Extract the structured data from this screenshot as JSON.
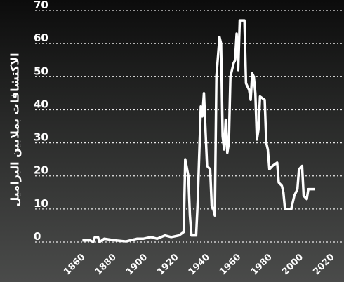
{
  "chart_data": {
    "type": "line",
    "y_label": "الاكتشافات بملايين البراميل",
    "x": [
      1859,
      1864,
      1866,
      1867,
      1869,
      1870,
      1873,
      1880,
      1887,
      1894,
      1898,
      1903,
      1907,
      1912,
      1916,
      1921,
      1924,
      1925,
      1927,
      1928,
      1929,
      1932,
      1933,
      1935,
      1936,
      1937,
      1939,
      1941,
      1942,
      1943,
      1944,
      1945,
      1947,
      1948,
      1949,
      1950,
      1951,
      1952,
      1953,
      1954,
      1956,
      1957,
      1958,
      1959,
      1960,
      1962,
      1963,
      1964,
      1966,
      1967,
      1968,
      1969,
      1970,
      1971,
      1972,
      1973,
      1976,
      1977,
      1978,
      1979,
      1981,
      1984,
      1985,
      1987,
      1988,
      1989,
      1993,
      1995,
      1997,
      1998,
      2000,
      2001,
      2003,
      2004,
      2008
    ],
    "series": [
      {
        "color": "#ffffff",
        "values": [
          0.5,
          0.5,
          0,
          1.5,
          1.5,
          0,
          1,
          0.5,
          0.2,
          1,
          1,
          1.5,
          1,
          2,
          1.5,
          2,
          3,
          25,
          20,
          8,
          2,
          2,
          12,
          41,
          38,
          45,
          23,
          22,
          11,
          10,
          8,
          50,
          62,
          60,
          32,
          28,
          37,
          27,
          30,
          50,
          54,
          55,
          63,
          52,
          67,
          67,
          67,
          48,
          46,
          43,
          51,
          50,
          45,
          31,
          34,
          44,
          43,
          30,
          28,
          22,
          23,
          24,
          18,
          17,
          15,
          10,
          10,
          14,
          16,
          22,
          23,
          14,
          13,
          16,
          16
        ]
      }
    ],
    "xlim": [
      1830,
      2026
    ],
    "xticks": [
      1860,
      1880,
      1900,
      1920,
      1940,
      1960,
      1980,
      2000,
      2020
    ],
    "ylim": [
      0,
      70
    ],
    "yticks": [
      0,
      10,
      20,
      30,
      40,
      50,
      60,
      70
    ],
    "grid": true
  }
}
